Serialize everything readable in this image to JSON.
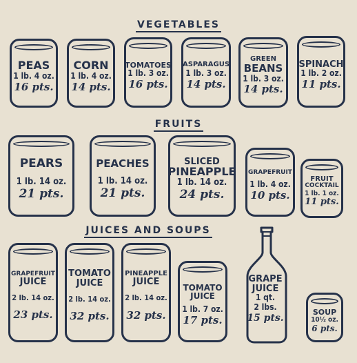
{
  "sections": {
    "vegetables": "VEGETABLES",
    "fruits": "FRUITS",
    "juices_soups": "JUICES AND SOUPS"
  },
  "vegetables": [
    {
      "name": "PEAS",
      "weight": "1 lb. 4 oz.",
      "points": "16 pts."
    },
    {
      "name": "CORN",
      "weight": "1 lb. 4 oz.",
      "points": "14 pts."
    },
    {
      "name": "TOMATOES",
      "weight": "1 lb. 3 oz.",
      "points": "16 pts."
    },
    {
      "name": "ASPARAGUS",
      "weight": "1 lb. 3 oz.",
      "points": "14 pts."
    },
    {
      "name_line1": "GREEN",
      "name_line2": "BEANS",
      "weight": "1 lb. 3 oz.",
      "points": "14 pts."
    },
    {
      "name": "SPINACH",
      "weight": "1 lb. 2 oz.",
      "points": "11 pts."
    }
  ],
  "fruits": [
    {
      "name": "PEARS",
      "weight": "1 lb. 14 oz.",
      "points": "21 pts."
    },
    {
      "name": "PEACHES",
      "weight": "1 lb. 14 oz.",
      "points": "21 pts."
    },
    {
      "name_line1": "SLICED",
      "name_line2": "PINEAPPLE",
      "weight": "1 lb. 14 oz.",
      "points": "24 pts."
    },
    {
      "name": "GRAPEFRUIT",
      "weight": "1 lb. 4 oz.",
      "points": "10 pts."
    },
    {
      "name_line1": "FRUIT",
      "name_line2": "COCKTAIL",
      "weight": "1 lb. 1 oz.",
      "points": "11 pts."
    }
  ],
  "juices": [
    {
      "name_line1": "GRAPEFRUIT",
      "name_line2": "JUICE",
      "weight": "2 lb. 14 oz.",
      "points": "23 pts."
    },
    {
      "name_line1": "TOMATO",
      "name_line2": "JUICE",
      "weight": "2 lb. 14 oz.",
      "points": "32 pts."
    },
    {
      "name_line1": "PINEAPPLE",
      "name_line2": "JUICE",
      "weight": "2 lb. 14 oz.",
      "points": "32 pts."
    },
    {
      "name_line1": "TOMATO",
      "name_line2": "JUICE",
      "weight": "1 lb. 7 oz.",
      "points": "17 pts."
    },
    {
      "name_line1": "GRAPE",
      "name_line2": "JUICE",
      "volume": "1 qt.",
      "weight": "2 lbs.",
      "points": "15 pts."
    },
    {
      "name": "SOUP",
      "weight": "10½ oz.",
      "points": "6 pts."
    }
  ]
}
